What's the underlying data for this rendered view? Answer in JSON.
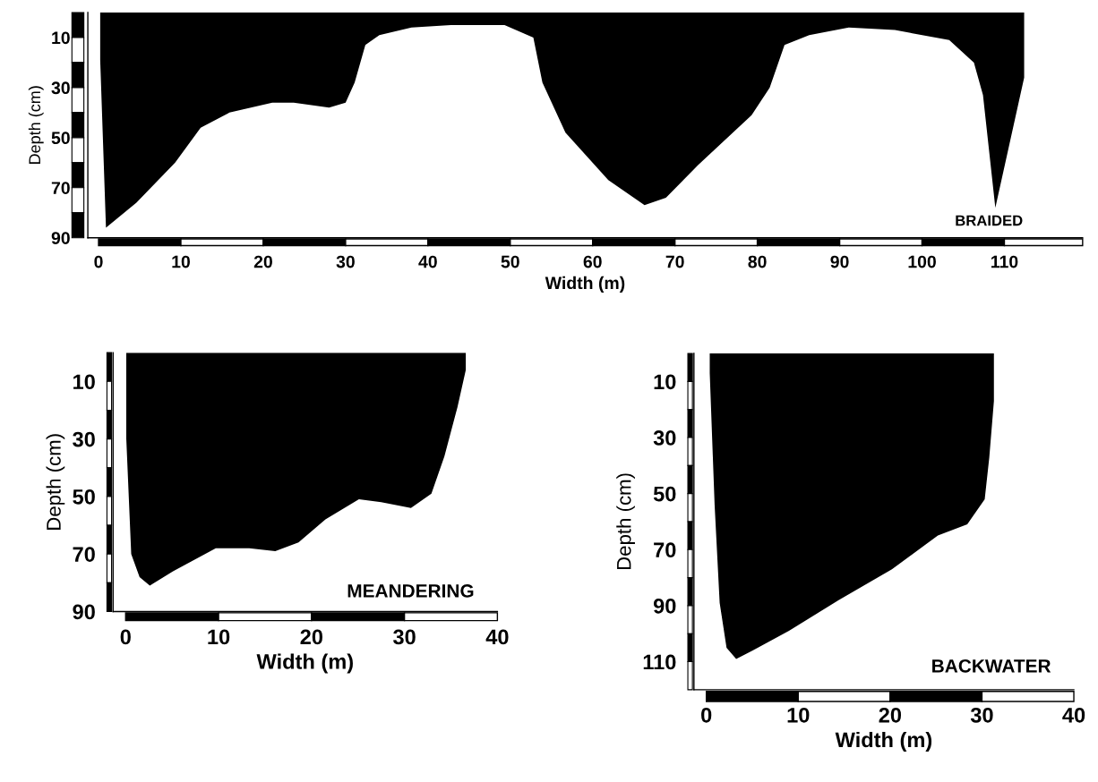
{
  "chart_data": [
    {
      "type": "area",
      "xlabel": "Width (m)",
      "ylabel": "Depth (cm)",
      "annotations": [
        "BRAIDED"
      ],
      "series": [
        {
          "color": "#000000",
          "x": [
            0.2,
            0.9,
            4.6,
            9.3,
            12.4,
            15.9,
            21.1,
            23.7,
            28,
            30,
            31.1,
            32.4,
            34.1,
            38,
            42.8,
            49.3,
            52.8,
            53.9,
            56.7,
            61.9,
            66.3,
            68.9,
            72.8,
            79.3,
            81.5,
            83.3,
            86.3,
            91.1,
            96.7,
            103.3,
            106.3,
            107.4,
            108.9,
            112.4
          ],
          "values": [
            19,
            86,
            76,
            60,
            46,
            40,
            36,
            36,
            38,
            36,
            28,
            13,
            9,
            6,
            5,
            5,
            10,
            28,
            48,
            67,
            77,
            74,
            61,
            41,
            30,
            13,
            9,
            6,
            7,
            11,
            20,
            33,
            78,
            26
          ]
        }
      ],
      "xlim": [
        -1.3,
        119.5
      ],
      "ylim": [
        90,
        0
      ],
      "xticks": [
        0,
        10,
        20,
        30,
        40,
        50,
        60,
        70,
        80,
        90,
        100,
        110
      ],
      "yticks": [
        10,
        30,
        50,
        70,
        90
      ],
      "grid": false
    },
    {
      "type": "area",
      "xlabel": "Width (m)",
      "ylabel": "Depth (cm)",
      "annotations": [
        "MEANDERING"
      ],
      "series": [
        {
          "color": "#000000",
          "x": [
            0.07,
            0.6,
            1.5,
            2.6,
            5.1,
            9.7,
            13.3,
            16.1,
            18.6,
            21.5,
            25.1,
            27.5,
            30.7,
            32.9,
            34.3,
            35.7,
            36.6
          ],
          "values": [
            30,
            70,
            78,
            81,
            76,
            68,
            68,
            69,
            66,
            58,
            51,
            52,
            54,
            49,
            36,
            19,
            6
          ]
        }
      ],
      "xlim": [
        -1.35,
        40
      ],
      "ylim": [
        90,
        0
      ],
      "xticks": [
        0,
        10,
        20,
        30,
        40
      ],
      "yticks": [
        10,
        30,
        50,
        70,
        90
      ],
      "grid": false
    },
    {
      "type": "area",
      "xlabel": "Width (m)",
      "ylabel": "Depth (cm)",
      "annotations": [
        "BACKWATER"
      ],
      "series": [
        {
          "color": "#000000",
          "x": [
            0.37,
            0.9,
            1.45,
            2.2,
            3.25,
            5.05,
            9,
            14.4,
            20.2,
            25.2,
            28.4,
            30.3,
            30.8,
            31.3
          ],
          "values": [
            7,
            54,
            89,
            105,
            109,
            106,
            99,
            88,
            77,
            65,
            61,
            52,
            37,
            17
          ]
        }
      ],
      "xlim": [
        -1.35,
        40
      ],
      "ylim": [
        120,
        0
      ],
      "xticks": [
        0,
        10,
        20,
        30,
        40
      ],
      "yticks": [
        10,
        30,
        50,
        70,
        90,
        110
      ],
      "grid": false
    }
  ]
}
